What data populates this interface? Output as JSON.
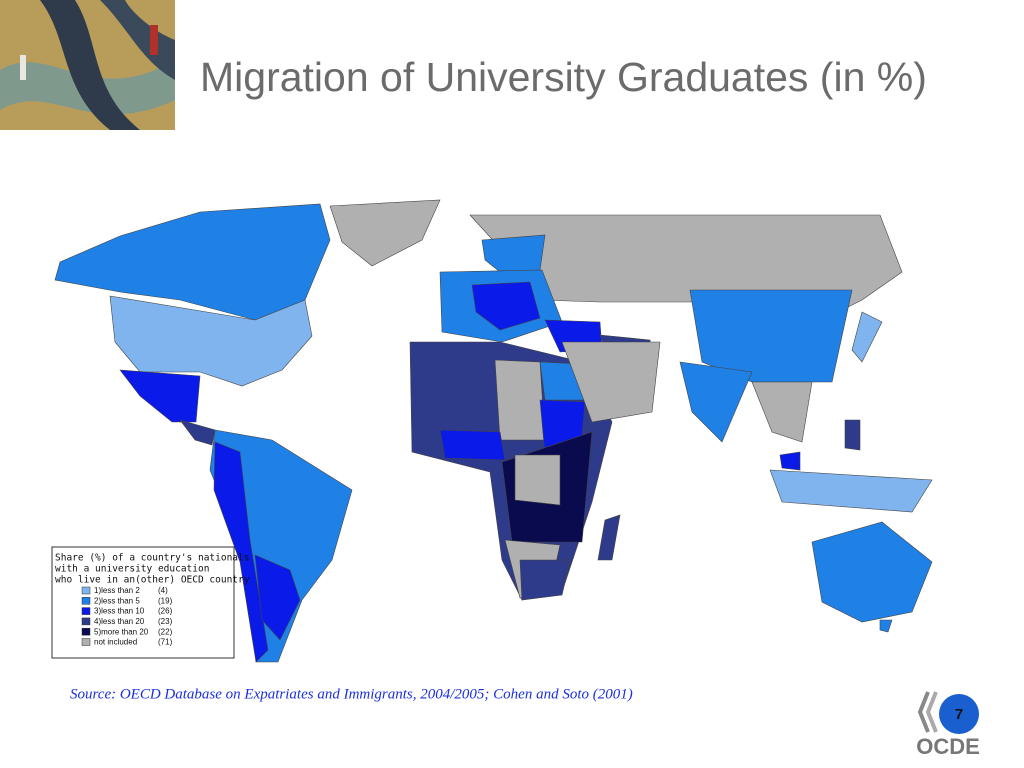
{
  "header": {
    "title": "Migration of University Graduates (in %)"
  },
  "legend": {
    "title_lines": [
      "Share (%) of a country's nationals",
      "with a university education",
      "who live in an(other) OECD country"
    ],
    "items": [
      {
        "label": "1)less than 2",
        "count": "(4)",
        "color": "#80b4ee"
      },
      {
        "label": "2)less than 5",
        "count": "(19)",
        "color": "#1f80e6"
      },
      {
        "label": "3)less than 10",
        "count": "(26)",
        "color": "#0a1ae8"
      },
      {
        "label": "4)less than 20",
        "count": "(23)",
        "color": "#2e3a8a"
      },
      {
        "label": "5)more than 20",
        "count": "(22)",
        "color": "#0a0a4e"
      },
      {
        "label": "not included",
        "count": "(71)",
        "color": "#b0b0b0"
      }
    ]
  },
  "source": "Source: OECD Database on Expatriates and Immigrants, 2004/2005; Cohen and Soto (2001)",
  "page_number": "7",
  "logo": "OCDE"
}
